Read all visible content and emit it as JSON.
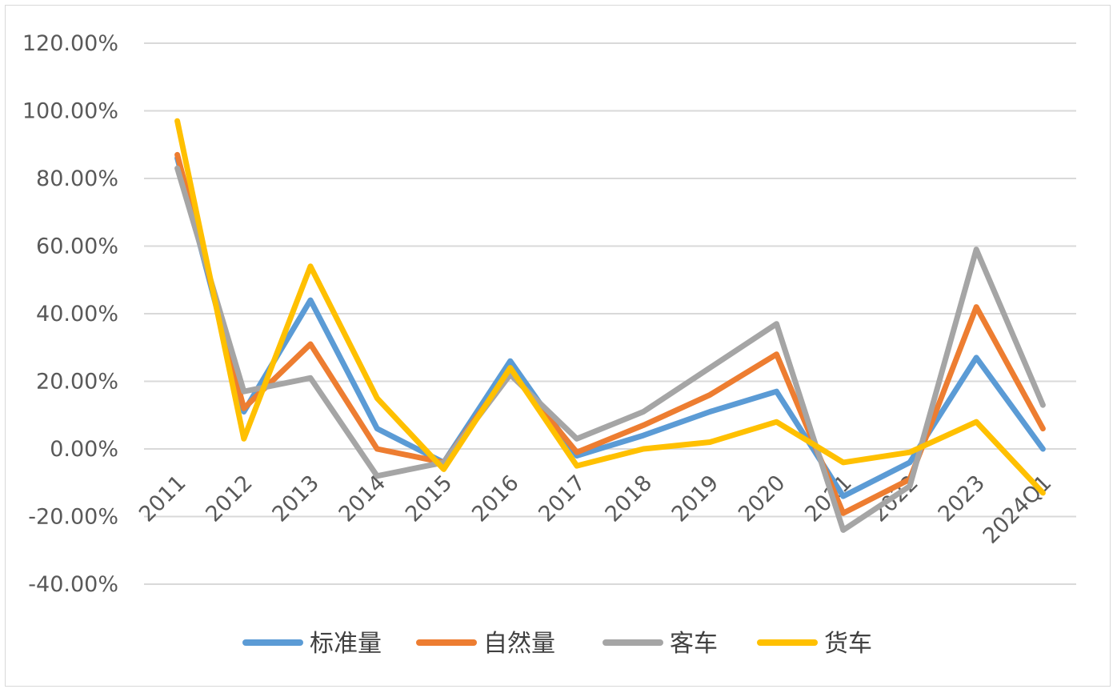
{
  "chart_data": {
    "type": "line",
    "categories": [
      "2011",
      "2012",
      "2013",
      "2014",
      "2015",
      "2016",
      "2017",
      "2018",
      "2019",
      "2020",
      "2021",
      "2022",
      "2023",
      "2024Q1"
    ],
    "ylim": [
      -0.4,
      1.2
    ],
    "yticks": [
      -0.4,
      -0.2,
      0,
      0.2,
      0.4,
      0.6,
      0.8,
      1.0,
      1.2
    ],
    "ytick_labels": [
      "-40.00%",
      "-20.00%",
      "0.00%",
      "20.00%",
      "40.00%",
      "60.00%",
      "80.00%",
      "100.00%",
      "120.00%"
    ],
    "grid": true,
    "legend_position": "bottom",
    "series": [
      {
        "name": "标准量",
        "color": "#5b9bd5",
        "values": [
          0.86,
          0.11,
          0.44,
          0.06,
          -0.04,
          0.26,
          -0.02,
          0.04,
          0.11,
          0.17,
          -0.14,
          -0.04,
          0.27,
          0.0
        ]
      },
      {
        "name": "自然量",
        "color": "#ed7d31",
        "values": [
          0.87,
          0.12,
          0.31,
          0.0,
          -0.04,
          0.23,
          -0.01,
          0.07,
          0.16,
          0.28,
          -0.19,
          -0.09,
          0.42,
          0.06
        ]
      },
      {
        "name": "客车",
        "color": "#a5a5a5",
        "values": [
          0.83,
          0.17,
          0.21,
          -0.08,
          -0.04,
          0.22,
          0.03,
          0.11,
          0.24,
          0.37,
          -0.24,
          -0.11,
          0.59,
          0.13
        ]
      },
      {
        "name": "货车",
        "color": "#ffc000",
        "values": [
          0.97,
          0.03,
          0.54,
          0.15,
          -0.06,
          0.24,
          -0.05,
          0.0,
          0.02,
          0.08,
          -0.04,
          -0.01,
          0.08,
          -0.13
        ]
      }
    ]
  }
}
